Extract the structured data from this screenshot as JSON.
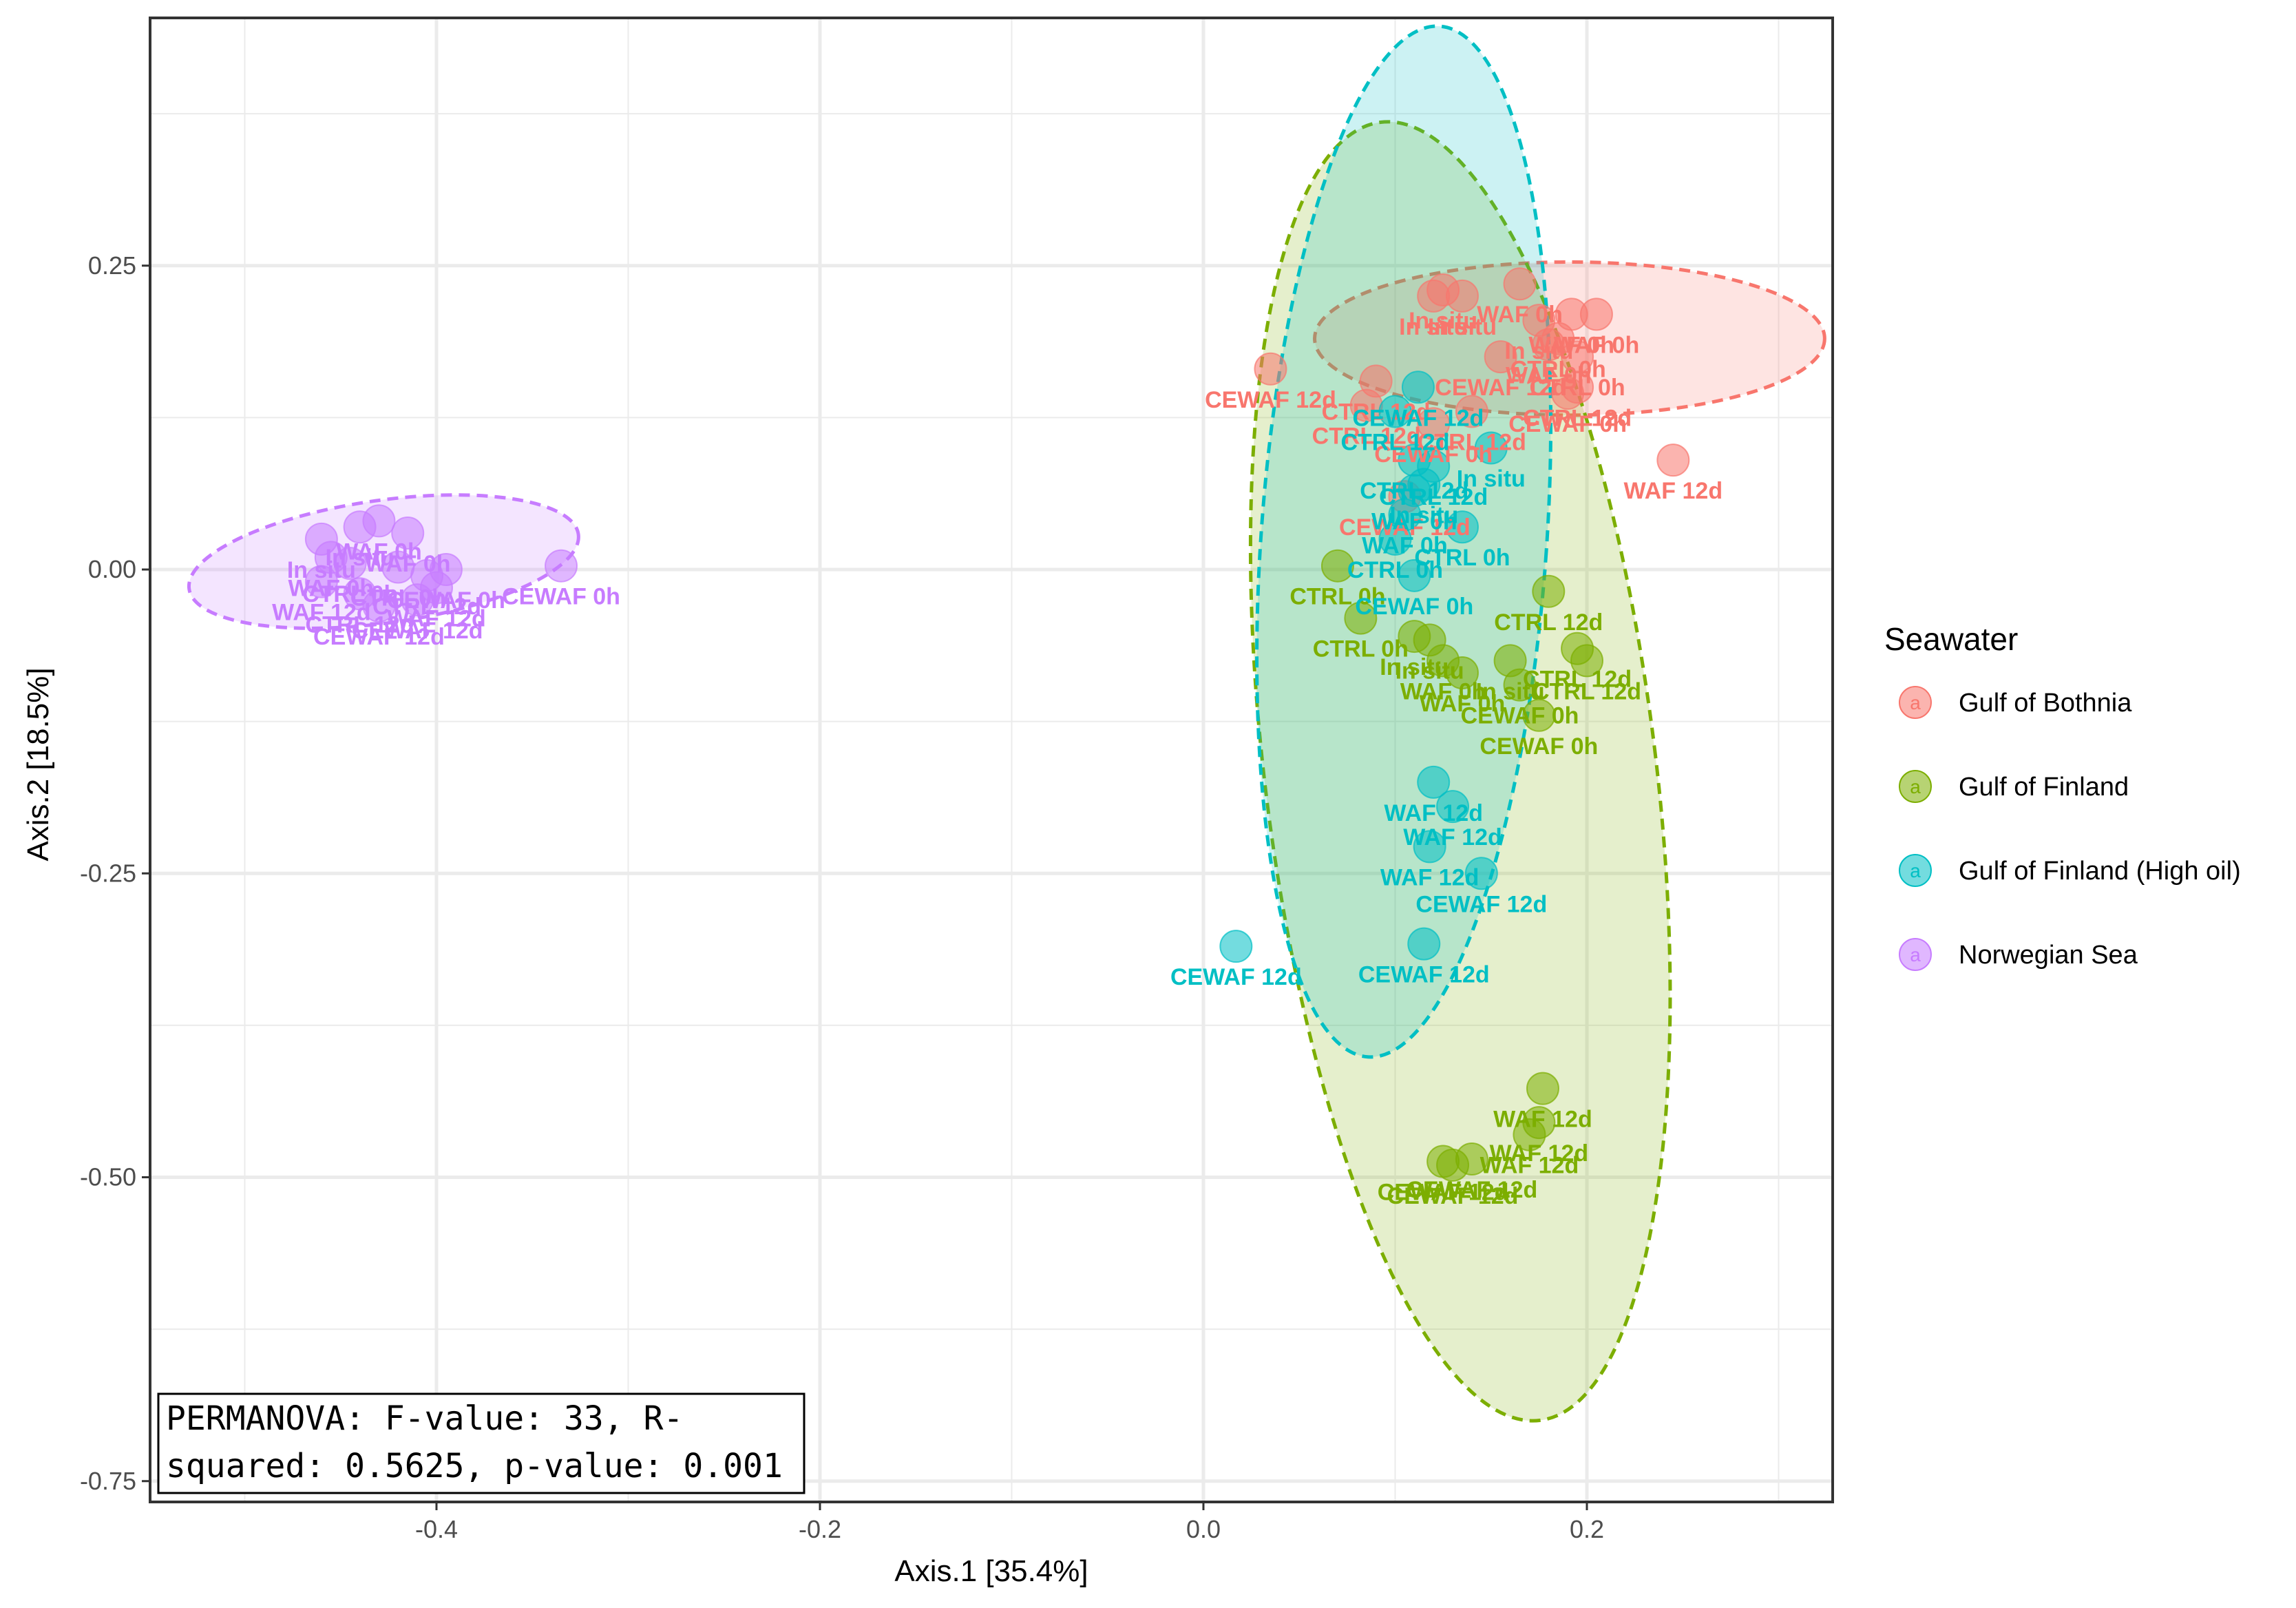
{
  "chart_data": {
    "type": "scatter",
    "title": "",
    "xlabel": "Axis.1   [35.4%]",
    "ylabel": "Axis.2   [18.5%]",
    "xlim": [
      -0.55,
      0.33
    ],
    "ylim": [
      -0.75,
      0.45
    ],
    "x_ticks": [
      -0.4,
      -0.2,
      0.0,
      0.2
    ],
    "x_tick_labels": [
      "-0.4",
      "-0.2",
      "0.0",
      "0.2"
    ],
    "y_ticks": [
      0.25,
      0.0,
      -0.25,
      -0.5,
      -0.75
    ],
    "y_tick_labels": [
      "0.25",
      "0.00",
      "-0.25",
      "-0.50",
      "-0.75"
    ],
    "grid": true,
    "legend_title": "Seawater",
    "legend_position": "right",
    "legend_key_glyph": "a",
    "annotation": [
      "PERMANOVA: F-value: 33, R-",
      "squared: 0.5625, p-value: 0.001"
    ],
    "series": [
      {
        "name": "Gulf of Bothnia",
        "color": "#F8766D",
        "ellipse": {
          "center": [
            0.191,
            0.19
          ],
          "radii": [
            0.133,
            0.063
          ],
          "angle_deg": 0
        },
        "points": [
          {
            "x": 0.035,
            "y": 0.165,
            "label": "CEWAF 12d"
          },
          {
            "x": 0.125,
            "y": 0.23,
            "label": "In situ"
          },
          {
            "x": 0.12,
            "y": 0.225,
            "label": "In situ"
          },
          {
            "x": 0.135,
            "y": 0.225,
            "label": "In situ"
          },
          {
            "x": 0.165,
            "y": 0.235,
            "label": "WAF 0h"
          },
          {
            "x": 0.175,
            "y": 0.205,
            "label": "In situ"
          },
          {
            "x": 0.18,
            "y": 0.185,
            "label": "WAF 0h"
          },
          {
            "x": 0.192,
            "y": 0.21,
            "label": "WAF 0h"
          },
          {
            "x": 0.205,
            "y": 0.21,
            "label": "WAF 0h"
          },
          {
            "x": 0.185,
            "y": 0.19,
            "label": "CTRL 0h"
          },
          {
            "x": 0.195,
            "y": 0.175,
            "label": "CTRL 0h"
          },
          {
            "x": 0.09,
            "y": 0.155,
            "label": "CTRL 12d"
          },
          {
            "x": 0.085,
            "y": 0.135,
            "label": "CTRL 12d"
          },
          {
            "x": 0.14,
            "y": 0.13,
            "label": "CTRL 12d"
          },
          {
            "x": 0.195,
            "y": 0.15,
            "label": "CTRL 12d"
          },
          {
            "x": 0.12,
            "y": 0.12,
            "label": "CEWAF 0h"
          },
          {
            "x": 0.19,
            "y": 0.145,
            "label": "CEWAF 0h"
          },
          {
            "x": 0.245,
            "y": 0.09,
            "label": "WAF 12d"
          },
          {
            "x": 0.105,
            "y": 0.06,
            "label": "CEWAF 12d"
          },
          {
            "x": 0.155,
            "y": 0.175,
            "label": "CEWAF 12d"
          }
        ]
      },
      {
        "name": "Gulf of Finland",
        "color": "#7CAE00",
        "ellipse": {
          "center": [
            0.134,
            -0.166
          ],
          "radii": [
            0.102,
            0.538
          ],
          "angle_deg": -7
        },
        "points": [
          {
            "x": 0.07,
            "y": 0.003,
            "label": "CTRL 0h"
          },
          {
            "x": 0.082,
            "y": -0.04,
            "label": "CTRL 0h"
          },
          {
            "x": 0.18,
            "y": -0.018,
            "label": "CTRL 12d"
          },
          {
            "x": 0.11,
            "y": -0.055,
            "label": "In situ"
          },
          {
            "x": 0.118,
            "y": -0.058,
            "label": "In situ"
          },
          {
            "x": 0.16,
            "y": -0.075,
            "label": "In situ"
          },
          {
            "x": 0.125,
            "y": -0.075,
            "label": "WAF 0h"
          },
          {
            "x": 0.135,
            "y": -0.085,
            "label": "WAF 0h"
          },
          {
            "x": 0.195,
            "y": -0.065,
            "label": "CTRL 12d"
          },
          {
            "x": 0.2,
            "y": -0.075,
            "label": "CTRL 12d"
          },
          {
            "x": 0.165,
            "y": -0.095,
            "label": "CEWAF 0h"
          },
          {
            "x": 0.175,
            "y": -0.12,
            "label": "CEWAF 0h"
          },
          {
            "x": 0.177,
            "y": -0.427,
            "label": "WAF 12d"
          },
          {
            "x": 0.175,
            "y": -0.455,
            "label": "WAF 12d"
          },
          {
            "x": 0.17,
            "y": -0.465,
            "label": "WAF 12d"
          },
          {
            "x": 0.125,
            "y": -0.487,
            "label": "CEWAF 12d"
          },
          {
            "x": 0.13,
            "y": -0.49,
            "label": "CEWAF 12d"
          },
          {
            "x": 0.14,
            "y": -0.485,
            "label": "CEWAF 12d"
          }
        ]
      },
      {
        "name": "Gulf of Finland (High oil)",
        "color": "#00BFC4",
        "ellipse": {
          "center": [
            0.1045,
            0.023
          ],
          "radii": [
            0.0745,
            0.425
          ],
          "angle_deg": 4
        },
        "points": [
          {
            "x": 0.112,
            "y": 0.15,
            "label": "CEWAF 12d"
          },
          {
            "x": 0.1,
            "y": 0.13,
            "label": "CTRL 12d"
          },
          {
            "x": 0.11,
            "y": 0.09,
            "label": "CTRL 12d"
          },
          {
            "x": 0.12,
            "y": 0.085,
            "label": "CTRL 12d"
          },
          {
            "x": 0.15,
            "y": 0.1,
            "label": "In situ"
          },
          {
            "x": 0.115,
            "y": 0.07,
            "label": "In situ"
          },
          {
            "x": 0.11,
            "y": 0.065,
            "label": "WAF 0h"
          },
          {
            "x": 0.105,
            "y": 0.045,
            "label": "WAF 0h"
          },
          {
            "x": 0.1,
            "y": 0.025,
            "label": "CTRL 0h"
          },
          {
            "x": 0.135,
            "y": 0.035,
            "label": "CTRL 0h"
          },
          {
            "x": 0.11,
            "y": -0.005,
            "label": "CEWAF 0h"
          },
          {
            "x": 0.12,
            "y": -0.175,
            "label": "WAF 12d"
          },
          {
            "x": 0.13,
            "y": -0.195,
            "label": "WAF 12d"
          },
          {
            "x": 0.118,
            "y": -0.228,
            "label": "WAF 12d"
          },
          {
            "x": 0.145,
            "y": -0.25,
            "label": "CEWAF 12d"
          },
          {
            "x": 0.115,
            "y": -0.308,
            "label": "CEWAF 12d"
          },
          {
            "x": 0.017,
            "y": -0.31,
            "label": "CEWAF 12d"
          }
        ]
      },
      {
        "name": "Norwegian Sea",
        "color": "#C77CFF",
        "ellipse": {
          "center": [
            -0.4275,
            0.0065
          ],
          "radii": [
            0.1025,
            0.0505
          ],
          "angle_deg": -8
        },
        "points": [
          {
            "x": -0.335,
            "y": 0.003,
            "label": "CEWAF 0h"
          },
          {
            "x": -0.46,
            "y": 0.025,
            "label": "In situ"
          },
          {
            "x": -0.44,
            "y": 0.035,
            "label": "In situ"
          },
          {
            "x": -0.43,
            "y": 0.04,
            "label": "WAF 0h"
          },
          {
            "x": -0.415,
            "y": 0.03,
            "label": "WAF 0h"
          },
          {
            "x": -0.455,
            "y": 0.01,
            "label": "WAF 0h"
          },
          {
            "x": -0.445,
            "y": 0.005,
            "label": "CTRL 0h"
          },
          {
            "x": -0.42,
            "y": 0.002,
            "label": "CTRL 0h"
          },
          {
            "x": -0.405,
            "y": -0.005,
            "label": "CTRL 12d"
          },
          {
            "x": -0.44,
            "y": -0.02,
            "label": "CTRL 12d"
          },
          {
            "x": -0.46,
            "y": -0.01,
            "label": "WAF 12d"
          },
          {
            "x": -0.4,
            "y": -0.015,
            "label": "WAF 12d"
          },
          {
            "x": -0.43,
            "y": -0.03,
            "label": "CEWAF 12d"
          },
          {
            "x": -0.41,
            "y": -0.025,
            "label": "CEWAF 12d"
          },
          {
            "x": -0.395,
            "y": 0.0,
            "label": "CEWAF 0h"
          }
        ]
      }
    ]
  }
}
